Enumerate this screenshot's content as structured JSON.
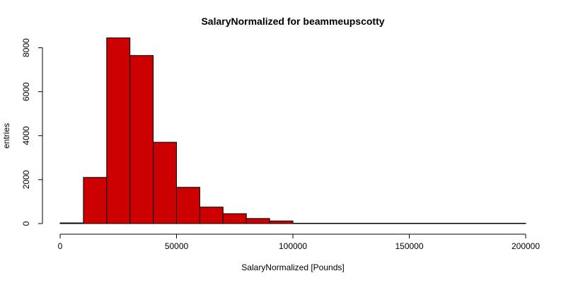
{
  "chart_data": {
    "type": "bar",
    "title": "SalaryNormalized for beammeupscotty",
    "xlabel": "SalaryNormalized [Pounds]",
    "ylabel": "entries",
    "bar_color": "#cc0000",
    "border_color": "#000000",
    "bin_edges": [
      0,
      10000,
      20000,
      30000,
      40000,
      50000,
      60000,
      70000,
      80000,
      90000,
      100000,
      110000,
      120000,
      130000,
      140000,
      150000,
      160000,
      170000,
      180000,
      190000,
      200000
    ],
    "values": [
      30,
      2100,
      8450,
      7650,
      3700,
      1650,
      750,
      450,
      230,
      120,
      10,
      5,
      3,
      2,
      1,
      1,
      1,
      0,
      1,
      0
    ],
    "xlim": [
      0,
      200000
    ],
    "ylim": [
      0,
      8500
    ],
    "xticks": [
      0,
      50000,
      100000,
      150000,
      200000
    ],
    "xtick_labels": [
      "0",
      "50000",
      "100000",
      "150000",
      "200000"
    ],
    "yticks": [
      0,
      2000,
      4000,
      6000,
      8000
    ],
    "ytick_labels": [
      "0",
      "2000",
      "4000",
      "6000",
      "8000"
    ],
    "grid": false,
    "legend": "none"
  }
}
